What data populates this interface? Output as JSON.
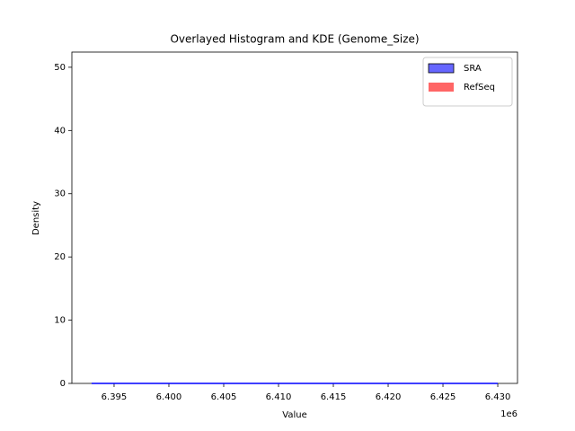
{
  "chart_data": {
    "type": "histogram_kde",
    "title": "Overlayed Histogram and KDE (Genome_Size)",
    "xlabel": "Value",
    "ylabel": "Density",
    "x_offset_label": "1e6",
    "xlim": [
      6391150,
      6431800
    ],
    "xticks": [
      {
        "value": 6395000,
        "label": "6.395"
      },
      {
        "value": 6400000,
        "label": "6.400"
      },
      {
        "value": 6405000,
        "label": "6.405"
      },
      {
        "value": 6410000,
        "label": "6.410"
      },
      {
        "value": 6415000,
        "label": "6.415"
      },
      {
        "value": 6420000,
        "label": "6.420"
      },
      {
        "value": 6425000,
        "label": "6.425"
      },
      {
        "value": 6430000,
        "label": "6.430"
      }
    ],
    "ylim": [
      0,
      52.4
    ],
    "yticks": [
      0,
      10,
      20,
      30,
      40,
      50
    ],
    "legend": "upper right",
    "series": [
      {
        "name": "SRA",
        "color": "#0000ff",
        "x": [
          6392950,
          6430000
        ],
        "values": [
          0,
          0
        ]
      },
      {
        "name": "RefSeq",
        "color": "#ff0000"
      }
    ]
  }
}
